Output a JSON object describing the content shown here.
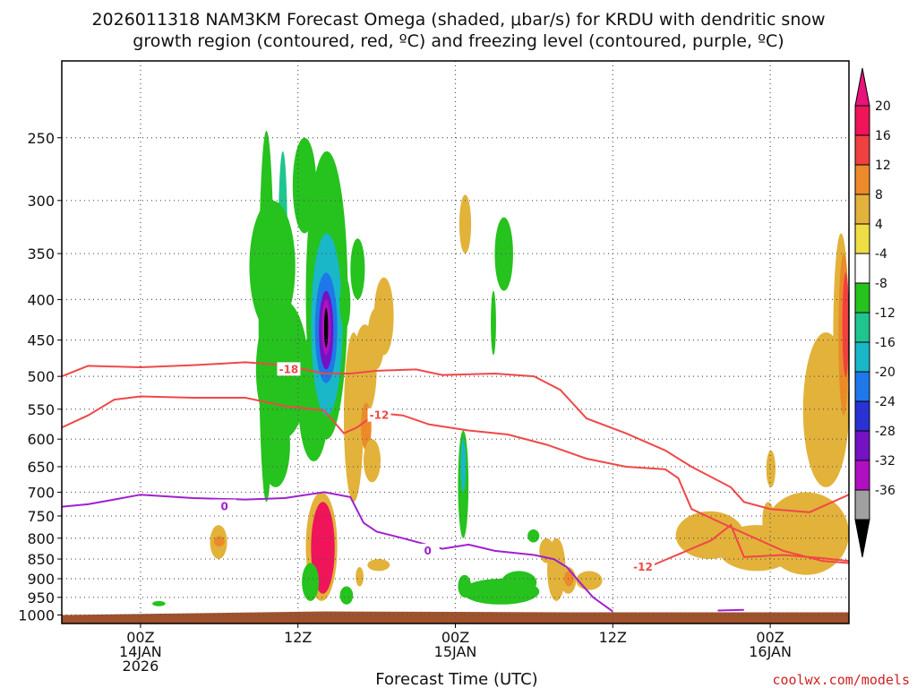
{
  "title": {
    "line1": "2026011318 NAM3KM Forecast Omega (shaded, μbar/s) for KRDU with dendritic snow",
    "line2": "growth region (contoured, red, ºC) and freezing level (contoured, purple, ºC)"
  },
  "credit": "coolwx.com/models",
  "chart_data": {
    "type": "heatmap",
    "title": "2026011318 NAM3KM Forecast Omega (shaded, μbar/s) for KRDU with dendritic snow growth region (contoured, red, ºC) and freezing level (contoured, purple, ºC)",
    "xlabel": "Forecast Time (UTC)",
    "ylabel": "",
    "x_unit": "forecast hour from 2026-01-13 18Z",
    "xlim": [
      0,
      60
    ],
    "ylim": [
      1025,
      200
    ],
    "y_scale": "log-pressure",
    "y_ticks": [
      250,
      300,
      350,
      400,
      450,
      500,
      550,
      600,
      650,
      700,
      750,
      800,
      850,
      900,
      950,
      1000
    ],
    "x_ticks": [
      {
        "x": 6,
        "lines": [
          "00Z",
          "14JAN",
          "2026"
        ]
      },
      {
        "x": 18,
        "lines": [
          "12Z"
        ]
      },
      {
        "x": 30,
        "lines": [
          "00Z",
          "15JAN"
        ]
      },
      {
        "x": 42,
        "lines": [
          "12Z"
        ]
      },
      {
        "x": 54,
        "lines": [
          "00Z",
          "16JAN"
        ]
      }
    ],
    "grid": true,
    "ground_pressure": 1000,
    "ground_color": "#a0522d",
    "colorbar": {
      "labels": [
        "20",
        "16",
        "12",
        "8",
        "4",
        "-4",
        "-8",
        "-12",
        "-16",
        "-20",
        "-24",
        "-28",
        "-32",
        "-36"
      ],
      "colors": [
        "#f0145a",
        "#f04040",
        "#ec8a2a",
        "#e2b23a",
        "#eedd44",
        "#ffffff",
        "#26c21e",
        "#1fc58f",
        "#19b7c8",
        "#1e78ea",
        "#2a32d4",
        "#7412c4",
        "#b010c2",
        "#a0a0a0"
      ],
      "top_arrow_color": "#e8147a",
      "bottom_arrow_color": "#000000"
    },
    "omega_blobs": [
      {
        "x": [
          15.0,
          16.2
        ],
        "p": [
          245,
          720
        ],
        "value": -6
      },
      {
        "x": [
          16.5,
          17.2
        ],
        "p": [
          260,
          440
        ],
        "value": -10
      },
      {
        "x": [
          14.3,
          17.8
        ],
        "p": [
          300,
          440
        ],
        "value": -6
      },
      {
        "x": [
          14.8,
          18.8
        ],
        "p": [
          400,
          600
        ],
        "value": -6
      },
      {
        "x": [
          15.2,
          17.4
        ],
        "p": [
          540,
          690
        ],
        "value": -6
      },
      {
        "x": [
          18.0,
          20.4
        ],
        "p": [
          440,
          640
        ],
        "value": -6
      },
      {
        "x": [
          17.6,
          19.4
        ],
        "p": [
          250,
          330
        ],
        "value": -6
      },
      {
        "x": [
          18.6,
          21.8
        ],
        "p": [
          260,
          600
        ],
        "value": -6
      },
      {
        "x": [
          19.0,
          21.4
        ],
        "p": [
          330,
          560
        ],
        "value": -12
      },
      {
        "x": [
          19.3,
          21.0
        ],
        "p": [
          370,
          510
        ],
        "value": -18
      },
      {
        "x": [
          19.6,
          20.7
        ],
        "p": [
          390,
          490
        ],
        "value": -24
      },
      {
        "x": [
          19.8,
          20.5
        ],
        "p": [
          400,
          470
        ],
        "value": -30
      },
      {
        "x": [
          20.0,
          20.3
        ],
        "p": [
          410,
          460
        ],
        "value": -36
      },
      {
        "x": [
          21.5,
          23.0
        ],
        "p": [
          440,
          720
        ],
        "value": 6
      },
      {
        "x": [
          22.2,
          24.0
        ],
        "p": [
          430,
          560
        ],
        "value": 6
      },
      {
        "x": [
          23.3,
          24.6
        ],
        "p": [
          410,
          490
        ],
        "value": 6
      },
      {
        "x": [
          21.2,
          22.0
        ],
        "p": [
          375,
          435
        ],
        "value": -6
      },
      {
        "x": [
          22.0,
          23.1
        ],
        "p": [
          335,
          400
        ],
        "value": -6
      },
      {
        "x": [
          23.8,
          25.3
        ],
        "p": [
          375,
          470
        ],
        "value": 6
      },
      {
        "x": [
          22.8,
          23.6
        ],
        "p": [
          540,
          620
        ],
        "value": 10
      },
      {
        "x": [
          23.0,
          24.3
        ],
        "p": [
          600,
          680
        ],
        "value": 6
      },
      {
        "x": [
          30.3,
          31.2
        ],
        "p": [
          295,
          350
        ],
        "value": 6
      },
      {
        "x": [
          30.2,
          31.0
        ],
        "p": [
          585,
          800
        ],
        "value": -6
      },
      {
        "x": [
          30.4,
          30.8
        ],
        "p": [
          600,
          700
        ],
        "value": -12
      },
      {
        "x": [
          33.0,
          34.4
        ],
        "p": [
          315,
          390
        ],
        "value": -6
      },
      {
        "x": [
          32.7,
          33.1
        ],
        "p": [
          390,
          470
        ],
        "value": -6
      },
      {
        "x": [
          11.3,
          12.6
        ],
        "p": [
          770,
          850
        ],
        "value": 6
      },
      {
        "x": [
          11.6,
          12.4
        ],
        "p": [
          795,
          820
        ],
        "value": 10
      },
      {
        "x": [
          18.6,
          21.0
        ],
        "p": [
          700,
          960
        ],
        "value": 6
      },
      {
        "x": [
          19.0,
          20.8
        ],
        "p": [
          720,
          940
        ],
        "value": 18
      },
      {
        "x": [
          18.3,
          19.6
        ],
        "p": [
          860,
          960
        ],
        "value": -6
      },
      {
        "x": [
          21.2,
          22.2
        ],
        "p": [
          920,
          970
        ],
        "value": -6
      },
      {
        "x": [
          22.4,
          23.0
        ],
        "p": [
          870,
          920
        ],
        "value": 6
      },
      {
        "x": [
          23.3,
          25.0
        ],
        "p": [
          850,
          880
        ],
        "value": 6
      },
      {
        "x": [
          30.2,
          31.2
        ],
        "p": [
          890,
          950
        ],
        "value": -6
      },
      {
        "x": [
          30.5,
          36.4
        ],
        "p": [
          900,
          970
        ],
        "value": -6
      },
      {
        "x": [
          33.5,
          36.2
        ],
        "p": [
          880,
          940
        ],
        "value": -6
      },
      {
        "x": [
          36.4,
          37.5
        ],
        "p": [
          800,
          860
        ],
        "value": 6
      },
      {
        "x": [
          37.0,
          38.4
        ],
        "p": [
          800,
          960
        ],
        "value": 6
      },
      {
        "x": [
          38.0,
          39.2
        ],
        "p": [
          870,
          940
        ],
        "value": 6
      },
      {
        "x": [
          38.3,
          39.0
        ],
        "p": [
          880,
          920
        ],
        "value": 10
      },
      {
        "x": [
          39.2,
          41.2
        ],
        "p": [
          880,
          930
        ],
        "value": 6
      },
      {
        "x": [
          35.5,
          36.4
        ],
        "p": [
          780,
          810
        ],
        "value": -6
      },
      {
        "x": [
          46.8,
          52.0
        ],
        "p": [
          740,
          850
        ],
        "value": 6
      },
      {
        "x": [
          50.0,
          56.0
        ],
        "p": [
          770,
          880
        ],
        "value": 6
      },
      {
        "x": [
          53.5,
          60.0
        ],
        "p": [
          700,
          890
        ],
        "value": 6
      },
      {
        "x": [
          56.5,
          60.0
        ],
        "p": [
          440,
          690
        ],
        "value": 6
      },
      {
        "x": [
          58.8,
          60.0
        ],
        "p": [
          330,
          600
        ],
        "value": 6
      },
      {
        "x": [
          59.2,
          60.0
        ],
        "p": [
          350,
          560
        ],
        "value": 10
      },
      {
        "x": [
          59.5,
          60.0
        ],
        "p": [
          370,
          500
        ],
        "value": 14
      },
      {
        "x": [
          53.7,
          54.4
        ],
        "p": [
          620,
          690
        ],
        "value": 6
      },
      {
        "x": [
          53.4,
          54.3
        ],
        "p": [
          720,
          800
        ],
        "value": 6
      },
      {
        "x": [
          6.9,
          7.9
        ],
        "p": [
          960,
          975
        ],
        "value": -6
      }
    ],
    "contours": [
      {
        "label": "-18",
        "color": "#f04848",
        "label_at": [
          17.3,
          490
        ],
        "points": [
          [
            0,
            500
          ],
          [
            2,
            485
          ],
          [
            6,
            487
          ],
          [
            10,
            484
          ],
          [
            14,
            480
          ],
          [
            17,
            484
          ],
          [
            20,
            496
          ],
          [
            22,
            496
          ],
          [
            24,
            492
          ],
          [
            27,
            490
          ],
          [
            29,
            498
          ],
          [
            33,
            496
          ],
          [
            36,
            500
          ],
          [
            38,
            520
          ],
          [
            40,
            565
          ],
          [
            43,
            590
          ],
          [
            46,
            620
          ],
          [
            48,
            650
          ],
          [
            51,
            690
          ],
          [
            52,
            720
          ],
          [
            54,
            735
          ],
          [
            57,
            742
          ],
          [
            60,
            705
          ]
        ]
      },
      {
        "label": "-12",
        "color": "#f04848",
        "label_at": [
          24.2,
          560
        ],
        "points": [
          [
            0,
            580
          ],
          [
            2,
            560
          ],
          [
            4,
            535
          ],
          [
            6,
            530
          ],
          [
            10,
            532
          ],
          [
            14,
            532
          ],
          [
            17,
            545
          ],
          [
            20,
            552
          ],
          [
            21.5,
            590
          ],
          [
            22.5,
            580
          ],
          [
            24,
            556
          ],
          [
            26,
            560
          ],
          [
            28,
            575
          ],
          [
            31,
            585
          ],
          [
            34,
            592
          ],
          [
            37,
            610
          ],
          [
            40,
            635
          ],
          [
            43,
            650
          ],
          [
            46,
            655
          ],
          [
            47,
            672
          ],
          [
            48,
            735
          ],
          [
            51,
            775
          ],
          [
            55,
            830
          ],
          [
            58,
            855
          ],
          [
            60,
            860
          ]
        ]
      },
      {
        "label": "-12",
        "color": "#f04848",
        "label_at": [
          44.3,
          870
        ],
        "points": [
          [
            44,
            880
          ],
          [
            46,
            852
          ],
          [
            48,
            825
          ],
          [
            49.5,
            805
          ],
          [
            51,
            770
          ],
          [
            52,
            845
          ],
          [
            55,
            840
          ],
          [
            58,
            848
          ],
          [
            60,
            855
          ]
        ]
      },
      {
        "label": "0",
        "color": "#a020d0",
        "label_at": [
          12.4,
          730
        ],
        "points": [
          [
            0,
            730
          ],
          [
            2,
            725
          ],
          [
            4,
            715
          ],
          [
            6,
            705
          ],
          [
            10,
            712
          ],
          [
            14,
            715
          ],
          [
            17,
            712
          ],
          [
            20,
            700
          ],
          [
            22,
            710
          ],
          [
            23,
            765
          ],
          [
            24,
            785
          ],
          [
            26,
            800
          ],
          [
            29,
            825
          ],
          [
            31,
            815
          ],
          [
            33,
            830
          ],
          [
            36,
            840
          ],
          [
            37.5,
            850
          ],
          [
            38.5,
            870
          ],
          [
            39.5,
            910
          ],
          [
            40.5,
            950
          ],
          [
            42,
            990
          ]
        ]
      },
      {
        "label": "0",
        "color": "#a020d0",
        "label_at": [
          27.9,
          830
        ],
        "points": [
          [
            50,
            987
          ],
          [
            52,
            985
          ]
        ]
      }
    ]
  }
}
